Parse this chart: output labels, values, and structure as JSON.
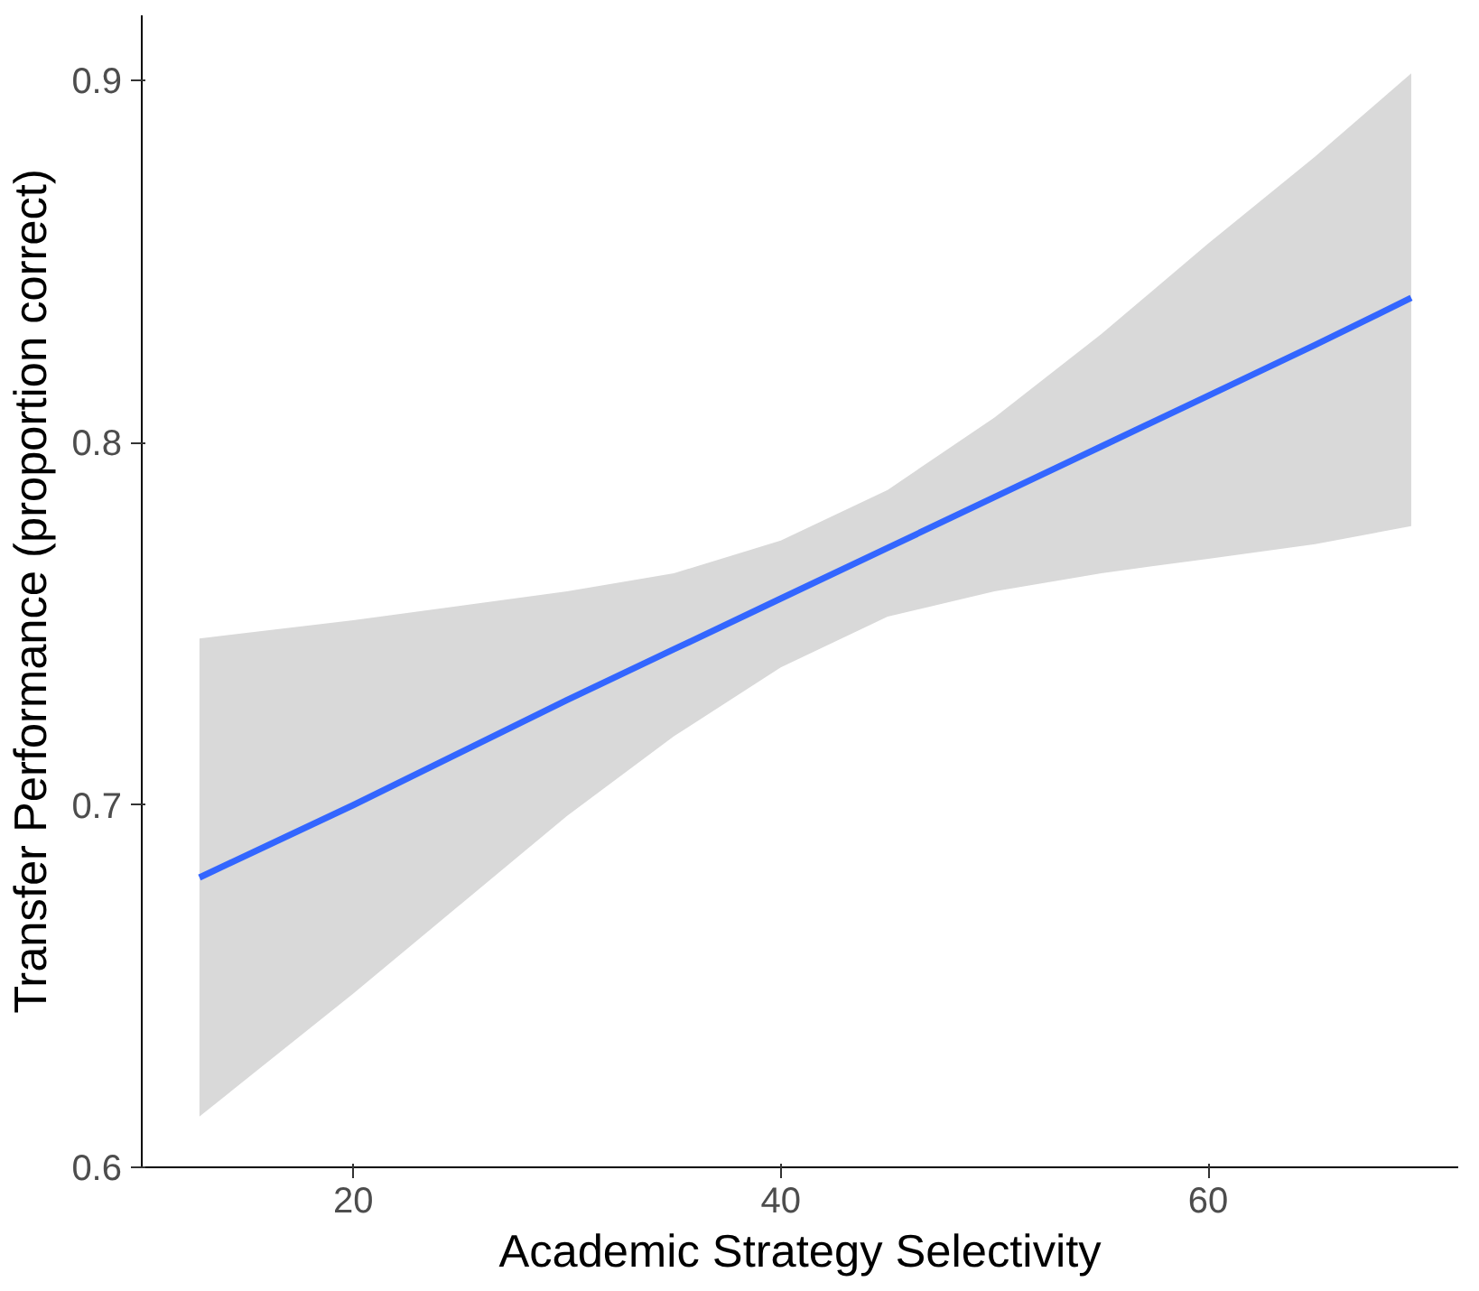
{
  "chart_data": {
    "type": "line",
    "xlabel": "Academic Strategy Selectivity",
    "ylabel": "Transfer Performance (proportion correct)",
    "xlim": [
      10.1,
      71.7
    ],
    "ylim": [
      0.6,
      0.918
    ],
    "xticks": [
      20,
      40,
      60
    ],
    "yticks": [
      0.6,
      0.7,
      0.8,
      0.9
    ],
    "grid": false,
    "marker": "none",
    "line_style": "solid",
    "x": [
      12.8,
      20,
      30,
      35,
      40,
      45,
      50,
      55,
      60,
      65,
      69.5
    ],
    "series": [
      {
        "color": "#3366ff",
        "values": [
          0.68,
          0.7,
          0.729,
          0.743,
          0.757,
          0.771,
          0.785,
          0.799,
          0.813,
          0.827,
          0.84
        ],
        "lower": [
          0.614,
          0.648,
          0.697,
          0.719,
          0.738,
          0.752,
          0.759,
          0.764,
          0.768,
          0.772,
          0.777
        ],
        "upper": [
          0.746,
          0.751,
          0.759,
          0.764,
          0.773,
          0.787,
          0.807,
          0.83,
          0.855,
          0.879,
          0.902
        ]
      }
    ]
  }
}
